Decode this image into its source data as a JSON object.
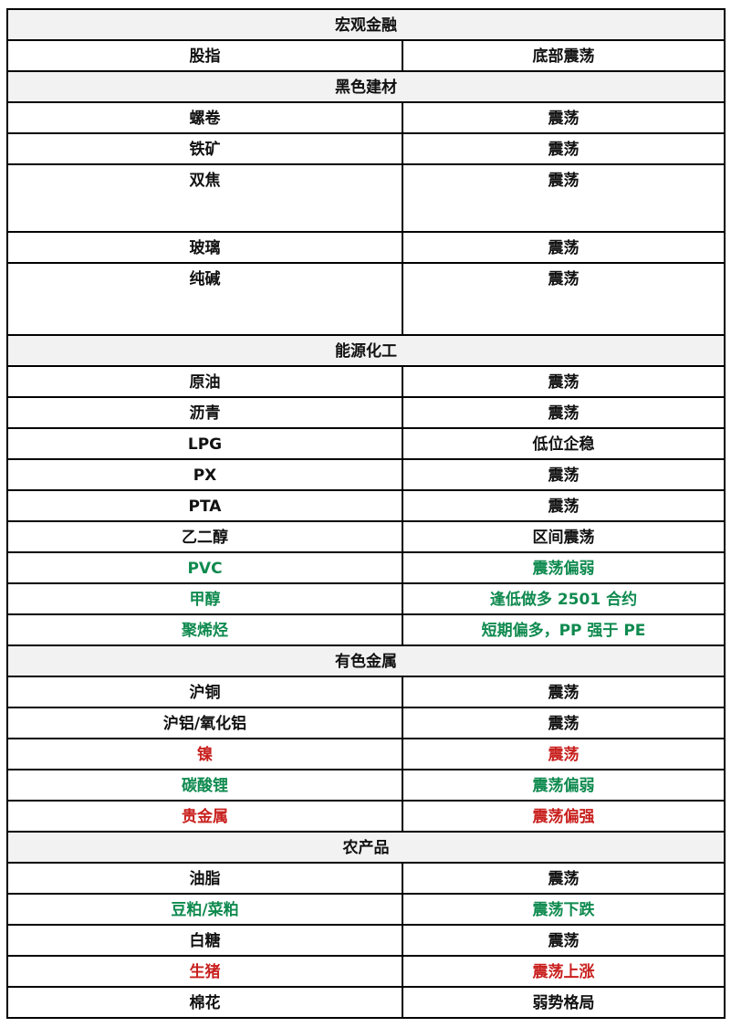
{
  "colors": {
    "green": "#0f8a4f",
    "red": "#c8201e",
    "section_bg": "#f2f2f2"
  },
  "sections": [
    {
      "title": "宏观金融",
      "rows": [
        {
          "name": "股指",
          "view": "底部震荡",
          "color": ""
        }
      ]
    },
    {
      "title": "黑色建材",
      "rows": [
        {
          "name": "螺卷",
          "view": "震荡",
          "color": ""
        },
        {
          "name": "铁矿",
          "view": "震荡",
          "color": ""
        },
        {
          "name": "双焦",
          "view": "震荡",
          "color": ""
        },
        {
          "name": "玻璃",
          "view": "震荡",
          "color": ""
        },
        {
          "name": "纯碱",
          "view": "震荡",
          "color": ""
        }
      ]
    },
    {
      "title": "能源化工",
      "rows": [
        {
          "name": "原油",
          "view": "震荡",
          "color": ""
        },
        {
          "name": "沥青",
          "view": "震荡",
          "color": ""
        },
        {
          "name": "LPG",
          "view": "低位企稳",
          "color": ""
        },
        {
          "name": "PX",
          "view": "震荡",
          "color": ""
        },
        {
          "name": "PTA",
          "view": "震荡",
          "color": ""
        },
        {
          "name": "乙二醇",
          "view": "区间震荡",
          "color": ""
        },
        {
          "name": "PVC",
          "view": "震荡偏弱",
          "color": "green"
        },
        {
          "name": "甲醇",
          "view": "逢低做多 2501 合约",
          "color": "green"
        },
        {
          "name": "聚烯烃",
          "view": "短期偏多，PP 强于 PE",
          "color": "green"
        }
      ]
    },
    {
      "title": "有色金属",
      "rows": [
        {
          "name": "沪铜",
          "view": "震荡",
          "color": ""
        },
        {
          "name": "沪铝/氧化铝",
          "view": "震荡",
          "color": ""
        },
        {
          "name": "镍",
          "view": "震荡",
          "color": "red"
        },
        {
          "name": "碳酸锂",
          "view": "震荡偏弱",
          "color": "green"
        },
        {
          "name": "贵金属",
          "view": "震荡偏强",
          "color": "red"
        }
      ]
    },
    {
      "title": "农产品",
      "rows": [
        {
          "name": "油脂",
          "view": "震荡",
          "color": ""
        },
        {
          "name": "豆粕/菜粕",
          "view": "震荡下跌",
          "color": "green"
        },
        {
          "name": "白糖",
          "view": "震荡",
          "color": ""
        },
        {
          "name": "生猪",
          "view": "震荡上涨",
          "color": "red"
        },
        {
          "name": "棉花",
          "view": "弱势格局",
          "color": ""
        }
      ]
    }
  ]
}
